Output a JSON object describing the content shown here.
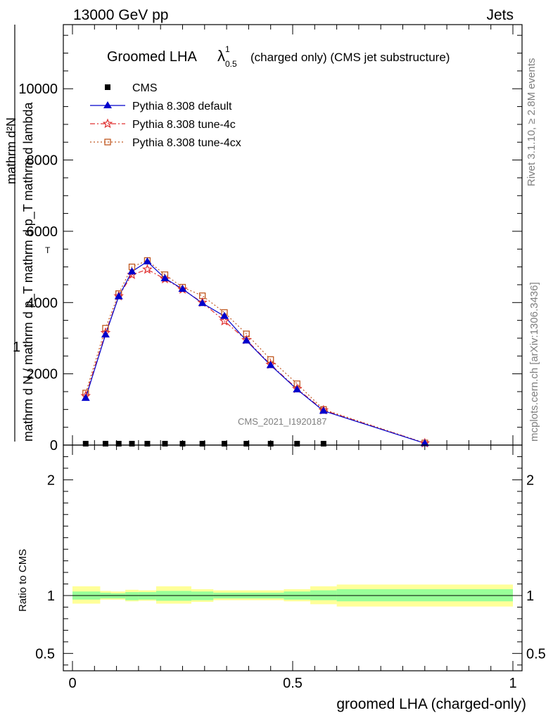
{
  "header": {
    "left": "13000 GeV pp",
    "right": "Jets"
  },
  "side": {
    "rivet": "Rivet 3.1.10, ≥ 2.8M events",
    "mcplots": "mcplots.cern.ch [arXiv:1306.3436]"
  },
  "chart_data": [
    {
      "type": "line",
      "title_main": "Groomed LHA",
      "title_lambda": "λ",
      "title_sup": "1",
      "title_sub": "0.5",
      "title_rest": "(charged only) (CMS jet substructure)",
      "watermark": "CMS_2021_I1920187",
      "ylabel_numerator": "1",
      "ylabel_denominator": "mathrm d N / mathrm d p_T mathrm d p_T mathrm d lambda",
      "ylabel_extra": "mathrm d²N",
      "ylabel_sub": "T",
      "xlim": [
        0,
        1
      ],
      "ylim": [
        0,
        11800
      ],
      "yticks": [
        0,
        2000,
        4000,
        6000,
        8000,
        10000
      ],
      "ytick_labels": [
        "0",
        "2000",
        "4000",
        "6000",
        "8000",
        "10000"
      ],
      "legend_position": "top-left",
      "x": [
        0.03,
        0.075,
        0.105,
        0.135,
        0.17,
        0.21,
        0.25,
        0.295,
        0.345,
        0.395,
        0.45,
        0.51,
        0.57,
        0.8
      ],
      "series": [
        {
          "name": "CMS",
          "color": "#000000",
          "marker": "square",
          "values": [
            0,
            0,
            0,
            0,
            0,
            0,
            0,
            0,
            0,
            0,
            0,
            0,
            0,
            null
          ]
        },
        {
          "name": "Pythia 8.308 default",
          "color": "#0000cc",
          "marker": "triangle",
          "dash": "",
          "values": [
            1320,
            3100,
            4170,
            4870,
            5150,
            4680,
            4380,
            3980,
            3620,
            2930,
            2240,
            1560,
            960,
            50
          ]
        },
        {
          "name": "Pythia 8.308 tune-4c",
          "color": "#e03030",
          "marker": "star",
          "dash": "7,3,2,3",
          "values": [
            1380,
            3150,
            4180,
            4780,
            4930,
            4660,
            4370,
            4000,
            3480,
            2950,
            2260,
            1580,
            980,
            55
          ]
        },
        {
          "name": "Pythia 8.308 tune-4cx",
          "color": "#c05820",
          "marker": "open-square",
          "dash": "2,3",
          "values": [
            1460,
            3280,
            4250,
            5000,
            5180,
            4780,
            4430,
            4190,
            3720,
            3120,
            2400,
            1720,
            1000,
            60
          ]
        }
      ]
    },
    {
      "type": "area",
      "ylabel": "Ratio to CMS",
      "xlabel": "groomed LHA (charged-only)",
      "xlim": [
        0,
        1
      ],
      "ylim": [
        0.35,
        2.3
      ],
      "xticks": [
        0,
        0.5,
        1
      ],
      "xtick_labels": [
        "0",
        "0.5",
        "1"
      ],
      "yticks": [
        0.5,
        1,
        2
      ],
      "ytick_labels": [
        "0.5",
        "1",
        "2"
      ],
      "bins": [
        {
          "lo": 0.0,
          "hi": 0.063,
          "inner": [
            0.965,
            1.035
          ],
          "outer": [
            0.93,
            1.08
          ]
        },
        {
          "lo": 0.063,
          "hi": 0.087,
          "inner": [
            0.975,
            1.025
          ],
          "outer": [
            0.965,
            1.04
          ]
        },
        {
          "lo": 0.087,
          "hi": 0.12,
          "inner": [
            0.975,
            1.02
          ],
          "outer": [
            0.965,
            1.035
          ]
        },
        {
          "lo": 0.12,
          "hi": 0.15,
          "inner": [
            0.96,
            1.03
          ],
          "outer": [
            0.95,
            1.05
          ]
        },
        {
          "lo": 0.15,
          "hi": 0.19,
          "inner": [
            0.965,
            1.03
          ],
          "outer": [
            0.955,
            1.045
          ]
        },
        {
          "lo": 0.19,
          "hi": 0.27,
          "inner": [
            0.955,
            1.04
          ],
          "outer": [
            0.93,
            1.08
          ]
        },
        {
          "lo": 0.27,
          "hi": 0.32,
          "inner": [
            0.96,
            1.035
          ],
          "outer": [
            0.945,
            1.055
          ]
        },
        {
          "lo": 0.32,
          "hi": 0.48,
          "inner": [
            0.975,
            1.025
          ],
          "outer": [
            0.96,
            1.045
          ]
        },
        {
          "lo": 0.48,
          "hi": 0.54,
          "inner": [
            0.965,
            1.035
          ],
          "outer": [
            0.95,
            1.055
          ]
        },
        {
          "lo": 0.54,
          "hi": 0.6,
          "inner": [
            0.96,
            1.045
          ],
          "outer": [
            0.925,
            1.08
          ]
        },
        {
          "lo": 0.6,
          "hi": 1.0,
          "inner": [
            0.95,
            1.055
          ],
          "outer": [
            0.905,
            1.095
          ]
        }
      ],
      "band_colors": {
        "inner": "#99ff99",
        "outer": "#ffff99"
      }
    }
  ]
}
